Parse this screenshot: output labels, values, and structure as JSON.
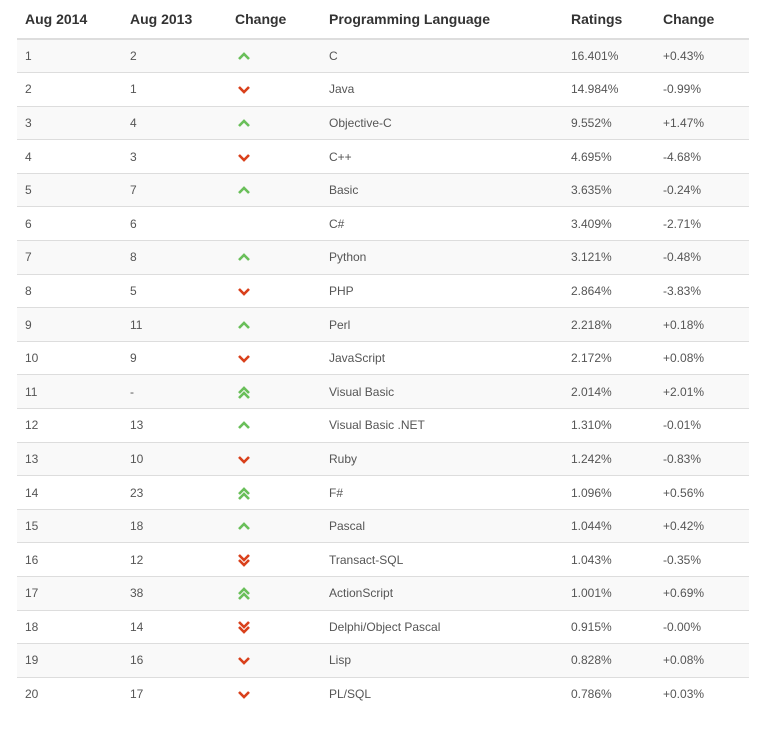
{
  "table": {
    "headers": [
      "Aug 2014",
      "Aug 2013",
      "Change",
      "Programming Language",
      "Ratings",
      "Change"
    ],
    "rows": [
      {
        "rank_2014": "1",
        "rank_2013": "2",
        "trend": "up",
        "language": "C",
        "rating": "16.401%",
        "change": "+0.43%"
      },
      {
        "rank_2014": "2",
        "rank_2013": "1",
        "trend": "down",
        "language": "Java",
        "rating": "14.984%",
        "change": "-0.99%"
      },
      {
        "rank_2014": "3",
        "rank_2013": "4",
        "trend": "up",
        "language": "Objective-C",
        "rating": "9.552%",
        "change": "+1.47%"
      },
      {
        "rank_2014": "4",
        "rank_2013": "3",
        "trend": "down",
        "language": "C++",
        "rating": "4.695%",
        "change": "-4.68%"
      },
      {
        "rank_2014": "5",
        "rank_2013": "7",
        "trend": "up",
        "language": "Basic",
        "rating": "3.635%",
        "change": "-0.24%"
      },
      {
        "rank_2014": "6",
        "rank_2013": "6",
        "trend": "none",
        "language": "C#",
        "rating": "3.409%",
        "change": "-2.71%"
      },
      {
        "rank_2014": "7",
        "rank_2013": "8",
        "trend": "up",
        "language": "Python",
        "rating": "3.121%",
        "change": "-0.48%"
      },
      {
        "rank_2014": "8",
        "rank_2013": "5",
        "trend": "down",
        "language": "PHP",
        "rating": "2.864%",
        "change": "-3.83%"
      },
      {
        "rank_2014": "9",
        "rank_2013": "11",
        "trend": "up",
        "language": "Perl",
        "rating": "2.218%",
        "change": "+0.18%"
      },
      {
        "rank_2014": "10",
        "rank_2013": "9",
        "trend": "down",
        "language": "JavaScript",
        "rating": "2.172%",
        "change": "+0.08%"
      },
      {
        "rank_2014": "11",
        "rank_2013": "-",
        "trend": "double-up",
        "language": "Visual Basic",
        "rating": "2.014%",
        "change": "+2.01%"
      },
      {
        "rank_2014": "12",
        "rank_2013": "13",
        "trend": "up",
        "language": "Visual Basic .NET",
        "rating": "1.310%",
        "change": "-0.01%"
      },
      {
        "rank_2014": "13",
        "rank_2013": "10",
        "trend": "down",
        "language": "Ruby",
        "rating": "1.242%",
        "change": "-0.83%"
      },
      {
        "rank_2014": "14",
        "rank_2013": "23",
        "trend": "double-up",
        "language": "F#",
        "rating": "1.096%",
        "change": "+0.56%"
      },
      {
        "rank_2014": "15",
        "rank_2013": "18",
        "trend": "up",
        "language": "Pascal",
        "rating": "1.044%",
        "change": "+0.42%"
      },
      {
        "rank_2014": "16",
        "rank_2013": "12",
        "trend": "double-down",
        "language": "Transact-SQL",
        "rating": "1.043%",
        "change": "-0.35%"
      },
      {
        "rank_2014": "17",
        "rank_2013": "38",
        "trend": "double-up",
        "language": "ActionScript",
        "rating": "1.001%",
        "change": "+0.69%"
      },
      {
        "rank_2014": "18",
        "rank_2013": "14",
        "trend": "double-down",
        "language": "Delphi/Object Pascal",
        "rating": "0.915%",
        "change": "-0.00%"
      },
      {
        "rank_2014": "19",
        "rank_2013": "16",
        "trend": "down",
        "language": "Lisp",
        "rating": "0.828%",
        "change": "+0.08%"
      },
      {
        "rank_2014": "20",
        "rank_2013": "17",
        "trend": "down",
        "language": "PL/SQL",
        "rating": "0.786%",
        "change": "+0.03%"
      }
    ]
  },
  "colors": {
    "up": "#6abf5a",
    "down": "#d9401b"
  },
  "icons": {
    "up": "chevron-up-icon",
    "down": "chevron-down-icon",
    "double-up": "double-chevron-up-icon",
    "double-down": "double-chevron-down-icon"
  }
}
